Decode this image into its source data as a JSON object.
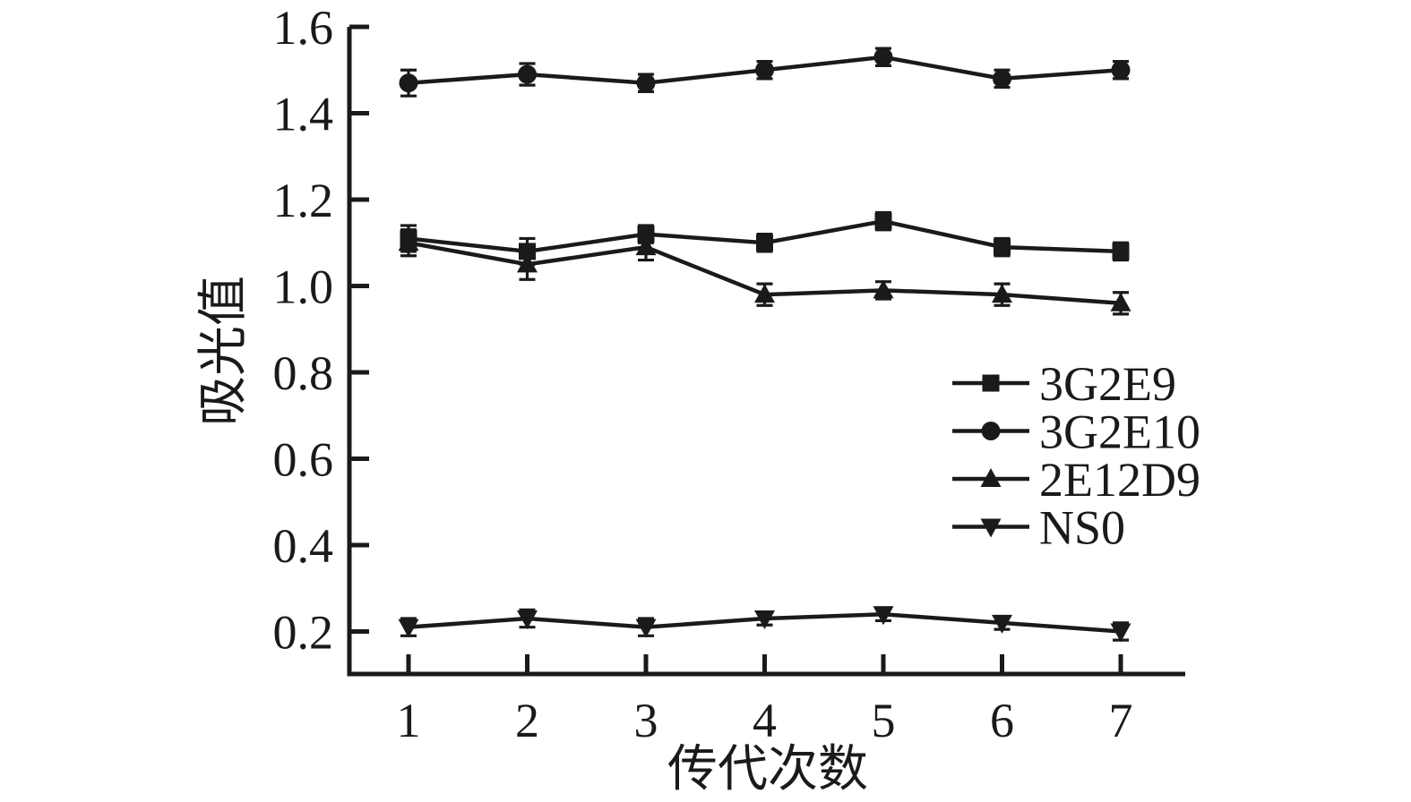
{
  "page": {
    "background": "#ffffff",
    "ink_color": "#1a1a1a"
  },
  "chart_data": {
    "type": "line",
    "title": "",
    "xlabel": "传代次数",
    "ylabel": "吸光值",
    "x": [
      1,
      2,
      3,
      4,
      5,
      6,
      7
    ],
    "xtick_labels": [
      "1",
      "2",
      "3",
      "4",
      "5",
      "6",
      "7"
    ],
    "yticks": [
      0.2,
      0.4,
      0.6,
      0.8,
      1.0,
      1.2,
      1.4,
      1.6
    ],
    "ytick_labels": [
      "0.2",
      "0.4",
      "0.6",
      "0.8",
      "1.0",
      "1.2",
      "1.4",
      "1.6"
    ],
    "xlim": [
      0.5,
      7.54
    ],
    "ylim": [
      0.1,
      1.6
    ],
    "grid": false,
    "legend_position": "inside-right",
    "error_bars": true,
    "series": [
      {
        "name": "3G2E9",
        "marker": "square",
        "values": [
          1.11,
          1.08,
          1.12,
          1.1,
          1.15,
          1.09,
          1.08
        ],
        "errors": [
          0.03,
          0.03,
          0.02,
          0.02,
          0.02,
          0.02,
          0.02
        ]
      },
      {
        "name": "3G2E10",
        "marker": "circle",
        "values": [
          1.47,
          1.49,
          1.47,
          1.5,
          1.53,
          1.48,
          1.5
        ],
        "errors": [
          0.03,
          0.025,
          0.02,
          0.02,
          0.02,
          0.02,
          0.02
        ]
      },
      {
        "name": "2E12D9",
        "marker": "triangle-up",
        "values": [
          1.1,
          1.05,
          1.09,
          0.98,
          0.99,
          0.98,
          0.96
        ],
        "errors": [
          0.03,
          0.035,
          0.03,
          0.025,
          0.02,
          0.025,
          0.025
        ]
      },
      {
        "name": "NS0",
        "marker": "triangle-down",
        "values": [
          0.21,
          0.23,
          0.21,
          0.23,
          0.24,
          0.22,
          0.2
        ],
        "errors": [
          0.02,
          0.02,
          0.02,
          0.015,
          0.015,
          0.015,
          0.02
        ]
      }
    ]
  }
}
